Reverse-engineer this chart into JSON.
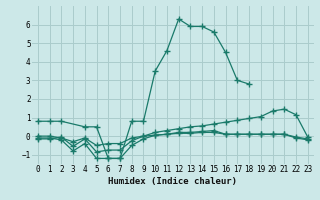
{
  "background_color": "#cce8e8",
  "grid_color": "#aacccc",
  "line_color": "#1a7a6a",
  "lines": [
    {
      "x": [
        0,
        1,
        2,
        4,
        5,
        6,
        7,
        8,
        9,
        10,
        11,
        12,
        13,
        14,
        15,
        16,
        17,
        18
      ],
      "y": [
        0.8,
        0.8,
        0.8,
        0.5,
        0.5,
        -1.2,
        -1.2,
        0.8,
        0.8,
        3.5,
        4.6,
        6.3,
        5.9,
        5.9,
        5.6,
        4.5,
        3.0,
        2.8
      ]
    },
    {
      "x": [
        0,
        1,
        2,
        3,
        4,
        5,
        6,
        7,
        8,
        9,
        10,
        11,
        12,
        13,
        14,
        15,
        16,
        17,
        18,
        19,
        20,
        21,
        22,
        23
      ],
      "y": [
        0.0,
        0.0,
        -0.1,
        -0.3,
        -0.1,
        -0.5,
        -0.4,
        -0.4,
        -0.1,
        0.0,
        0.05,
        0.1,
        0.15,
        0.15,
        0.2,
        0.2,
        0.1,
        0.1,
        0.1,
        0.1,
        0.1,
        0.1,
        -0.05,
        -0.15
      ]
    },
    {
      "x": [
        0,
        1,
        2,
        3,
        4,
        5,
        6,
        7,
        8,
        9,
        10,
        11,
        12,
        13,
        14,
        15,
        16,
        17,
        18,
        19,
        20,
        21,
        22,
        23
      ],
      "y": [
        -0.15,
        -0.15,
        -0.05,
        -0.55,
        -0.15,
        -0.85,
        -0.75,
        -0.75,
        -0.25,
        0.0,
        0.2,
        0.3,
        0.4,
        0.5,
        0.55,
        0.65,
        0.75,
        0.85,
        0.95,
        1.05,
        1.35,
        1.45,
        1.15,
        -0.05
      ]
    },
    {
      "x": [
        0,
        1,
        2,
        3,
        4,
        5,
        6,
        7,
        8,
        9,
        10,
        11,
        12,
        13,
        14,
        15,
        16,
        17,
        18,
        19,
        20,
        21,
        22,
        23
      ],
      "y": [
        -0.1,
        -0.1,
        -0.2,
        -0.8,
        -0.4,
        -1.2,
        -1.2,
        -1.2,
        -0.5,
        -0.15,
        0.05,
        0.1,
        0.2,
        0.2,
        0.25,
        0.3,
        0.1,
        0.1,
        0.1,
        0.1,
        0.1,
        0.1,
        -0.1,
        -0.2
      ]
    }
  ],
  "xlim": [
    -0.5,
    23.5
  ],
  "ylim": [
    -1.5,
    7.0
  ],
  "xticks": [
    0,
    1,
    2,
    3,
    4,
    5,
    6,
    7,
    8,
    9,
    10,
    11,
    12,
    13,
    14,
    15,
    16,
    17,
    18,
    19,
    20,
    21,
    22,
    23
  ],
  "yticks": [
    -1,
    0,
    1,
    2,
    3,
    4,
    5,
    6
  ],
  "xlabel": "Humidex (Indice chaleur)"
}
